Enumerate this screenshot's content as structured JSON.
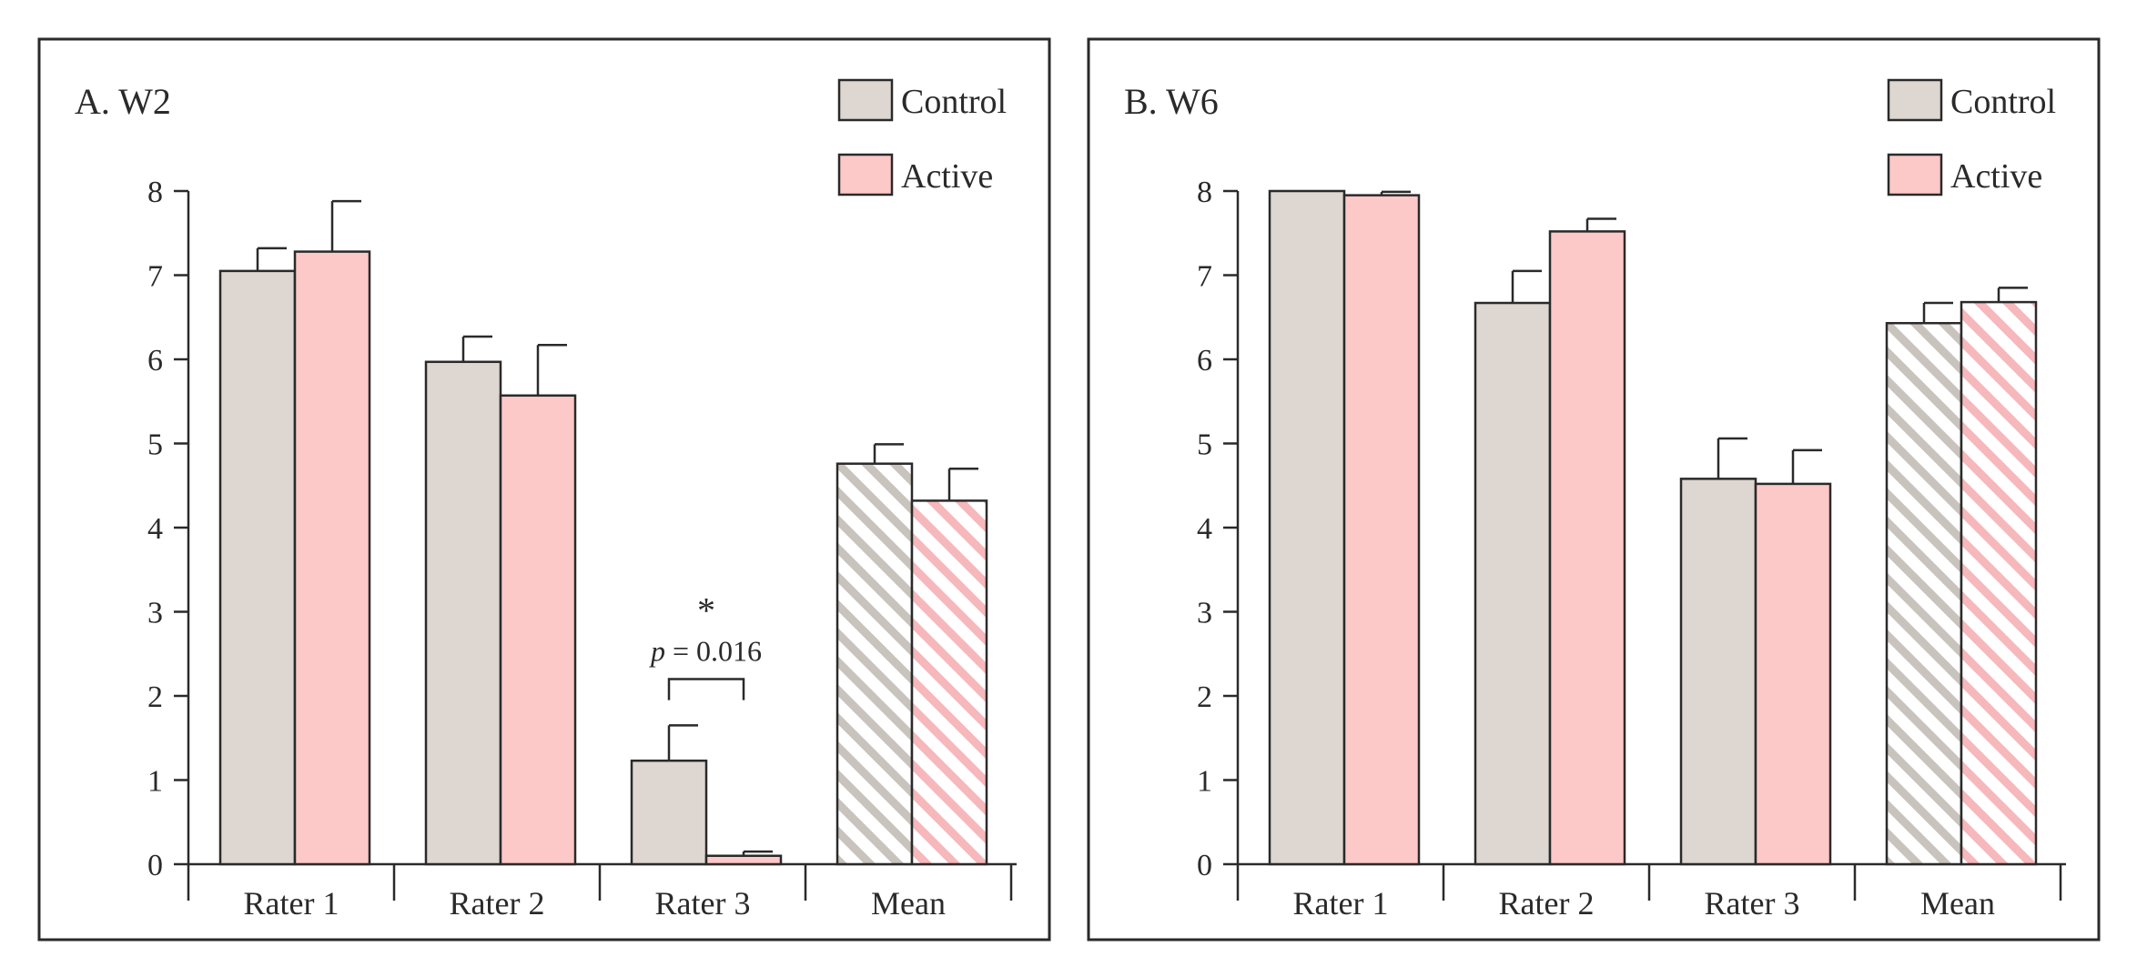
{
  "colors": {
    "control": "#ddd6d1",
    "active": "#fcc8c8",
    "control_hatch": "#c9c3be",
    "active_hatch": "#f6b8bb",
    "axis": "#2a2a2a"
  },
  "chart_data": [
    {
      "type": "bar",
      "title": "A. W2",
      "categories": [
        "Rater 1",
        "Rater 2",
        "Rater 3",
        "Mean"
      ],
      "ylim": [
        0,
        8
      ],
      "yticks": [
        0,
        1,
        2,
        3,
        4,
        5,
        6,
        7,
        8
      ],
      "legend": [
        "Control",
        "Active"
      ],
      "legend_position": "top-right",
      "hatched_category": "Mean",
      "series": [
        {
          "name": "Control",
          "values": [
            7.05,
            5.97,
            1.23,
            4.76
          ],
          "errors": [
            0.27,
            0.3,
            0.42,
            0.23
          ]
        },
        {
          "name": "Active",
          "values": [
            7.28,
            5.57,
            0.1,
            4.32
          ],
          "errors": [
            0.6,
            0.6,
            0.05,
            0.38
          ]
        }
      ],
      "annotations": [
        {
          "category": "Rater 3",
          "significance": "*",
          "p_text": "p",
          "p_value_text": "= 0.016"
        }
      ]
    },
    {
      "type": "bar",
      "title": "B. W6",
      "categories": [
        "Rater 1",
        "Rater 2",
        "Rater 3",
        "Mean"
      ],
      "ylim": [
        0,
        8
      ],
      "yticks": [
        0,
        1,
        2,
        3,
        4,
        5,
        6,
        7,
        8
      ],
      "legend": [
        "Control",
        "Active"
      ],
      "legend_position": "top-right",
      "hatched_category": "Mean",
      "series": [
        {
          "name": "Control",
          "values": [
            8.0,
            6.67,
            4.58,
            6.43
          ],
          "errors": [
            0.0,
            0.38,
            0.48,
            0.24
          ]
        },
        {
          "name": "Active",
          "values": [
            7.95,
            7.52,
            4.52,
            6.68
          ],
          "errors": [
            0.04,
            0.15,
            0.4,
            0.17
          ]
        }
      ],
      "annotations": []
    }
  ]
}
